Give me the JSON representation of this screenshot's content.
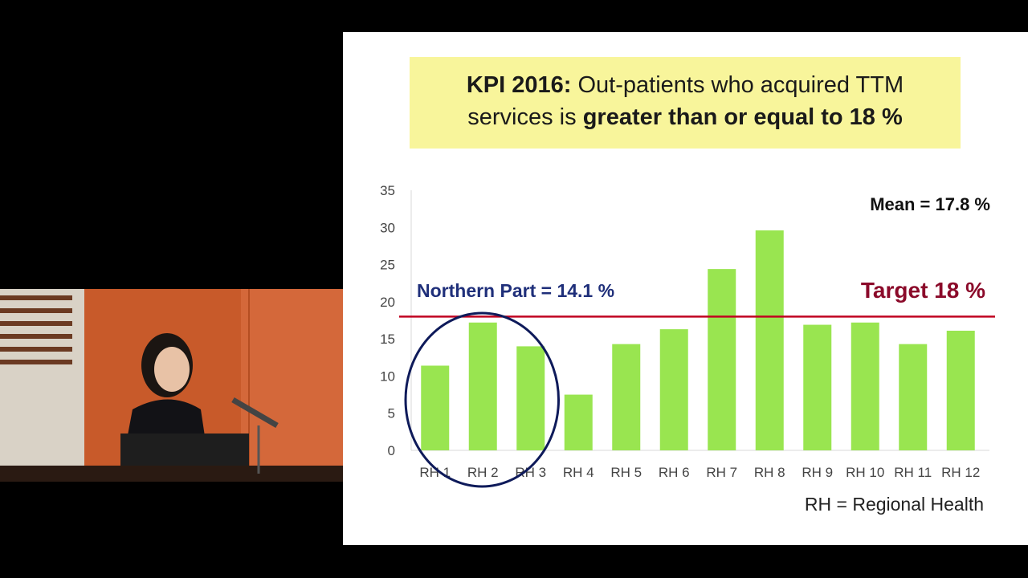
{
  "slide": {
    "title_bold_prefix": "KPI 2016:",
    "title_line1_rest": "Out-patients who acquired TTM",
    "title_line2_normal": "services is",
    "title_line2_bold": "greater than or equal to 18 %",
    "mean_label": "Mean = 17.8 %",
    "target_label": "Target 18 %",
    "northern_label": "Northern Part = 14.1 %",
    "footnote": "RH = Regional Health"
  },
  "colors": {
    "bar": "#99e550",
    "target_line": "#c00020",
    "target_text": "#8b0a2a",
    "northern_text": "#1f2f7a",
    "circle": "#0e1a5a",
    "title_bg": "#f8f59b"
  },
  "chart_data": {
    "type": "bar",
    "categories": [
      "RH 1",
      "RH 2",
      "RH 3",
      "RH 4",
      "RH 5",
      "RH 6",
      "RH 7",
      "RH 8",
      "RH 9",
      "RH 10",
      "RH 11",
      "RH 12"
    ],
    "values": [
      11.4,
      17.2,
      14.0,
      7.5,
      14.3,
      16.3,
      24.4,
      29.6,
      16.9,
      17.2,
      14.3,
      16.1
    ],
    "ylim": [
      0,
      35
    ],
    "yticks": [
      0,
      5,
      10,
      15,
      20,
      25,
      30,
      35
    ],
    "reference_line": 18,
    "highlighted_categories": [
      "RH 1",
      "RH 2",
      "RH 3"
    ],
    "grid": false
  }
}
